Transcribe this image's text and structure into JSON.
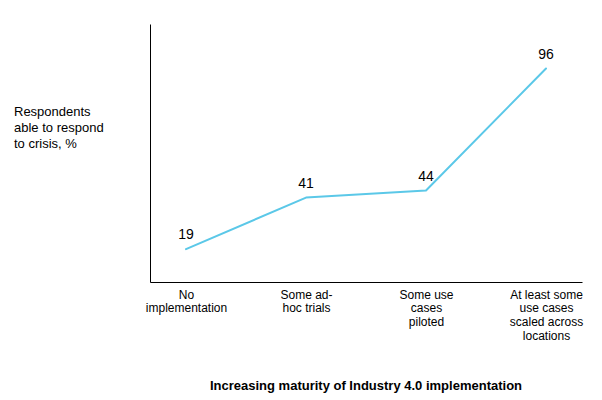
{
  "chart_data": {
    "type": "line",
    "categories": [
      "No\nimplementation",
      "Some ad-\nhoc trials",
      "Some use\ncases\npiloted",
      "At least some\nuse cases\nscaled across\nlocations"
    ],
    "values": [
      19,
      41,
      44,
      96
    ],
    "color": "#5bc8e8",
    "xlabel": "Increasing maturity of Industry 4.0 implementation",
    "ylabel": "Respondents\nable to respond\nto crisis, %",
    "ylim": [
      5,
      115
    ],
    "tick_labels": "x",
    "data_labels": true,
    "grid": false
  }
}
